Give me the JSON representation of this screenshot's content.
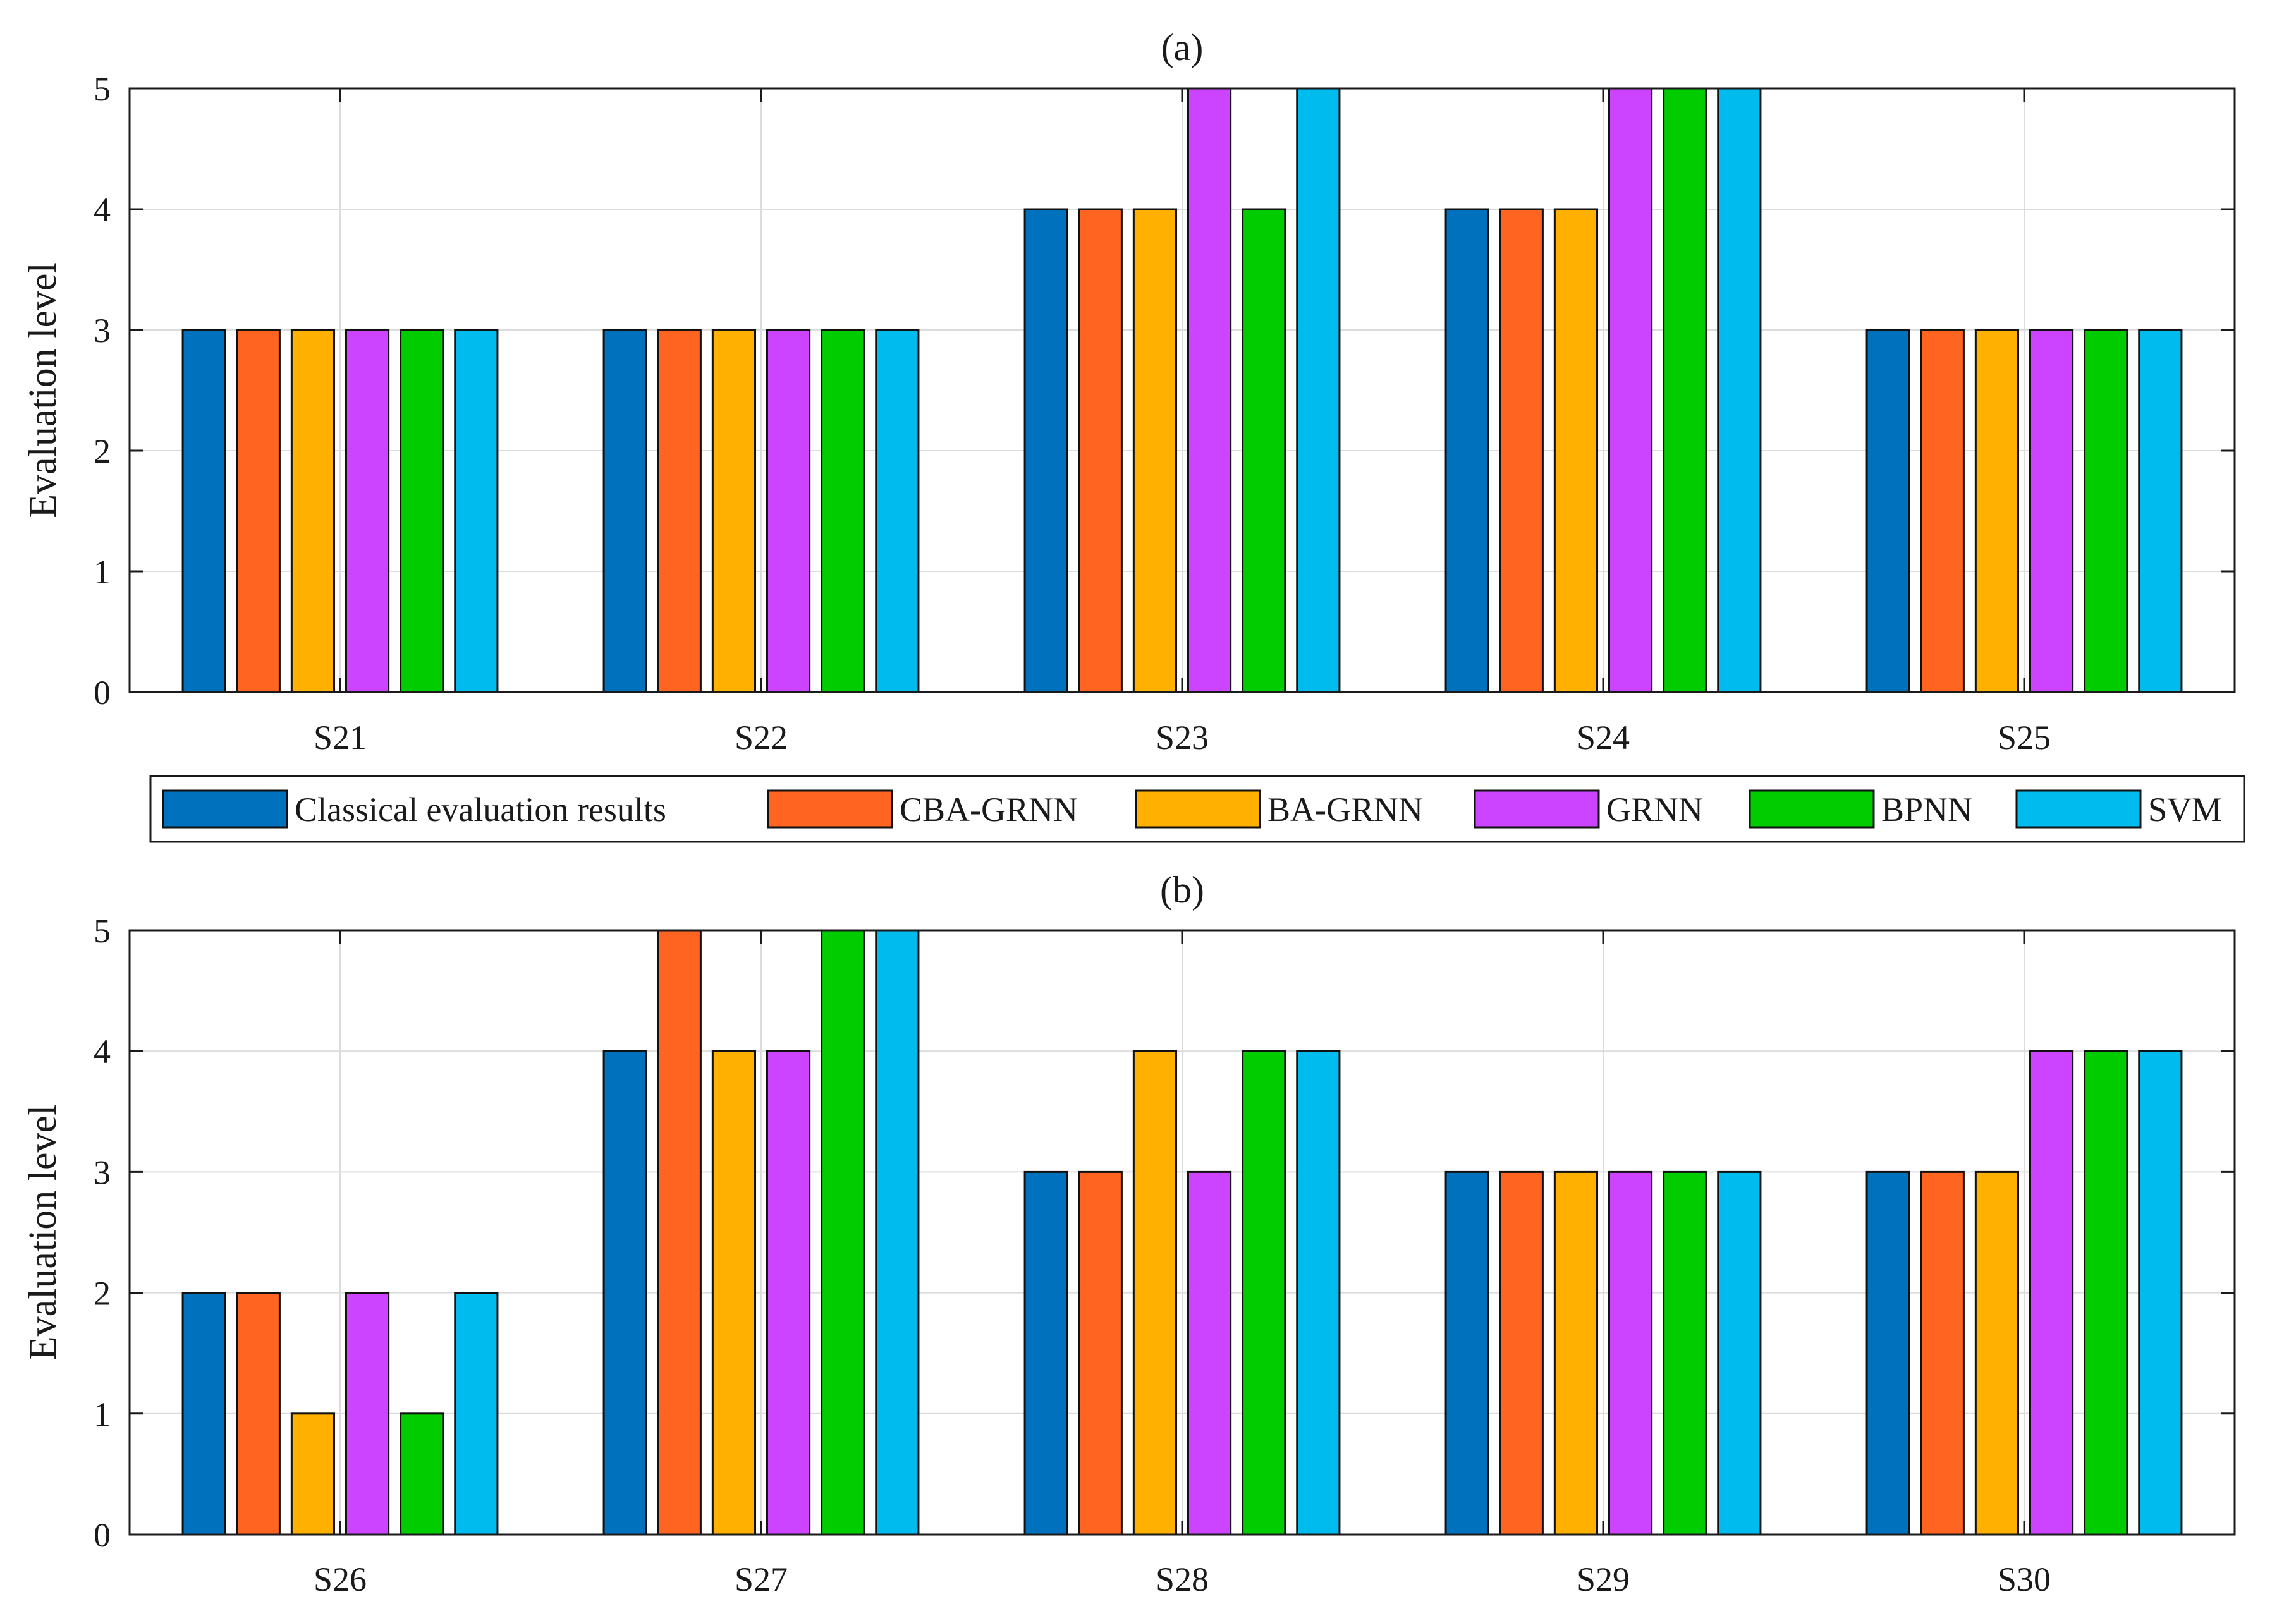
{
  "chart_data": [
    {
      "type": "bar",
      "title": "(a)",
      "xlabel": "",
      "ylabel": "Evaluation level",
      "ylim": [
        0,
        5
      ],
      "yticks": [
        "0",
        "1",
        "2",
        "3",
        "4",
        "5"
      ],
      "grid": true,
      "categories": [
        "S21",
        "S22",
        "S23",
        "S24",
        "S25"
      ],
      "series": [
        {
          "name": "Classical evaluation results",
          "values": [
            3,
            3,
            4,
            4,
            3
          ]
        },
        {
          "name": "CBA-GRNN",
          "values": [
            3,
            3,
            4,
            4,
            3
          ]
        },
        {
          "name": "BA-GRNN",
          "values": [
            3,
            3,
            4,
            4,
            3
          ]
        },
        {
          "name": "GRNN",
          "values": [
            3,
            3,
            5,
            5,
            3
          ]
        },
        {
          "name": "BPNN",
          "values": [
            3,
            3,
            4,
            5,
            3
          ]
        },
        {
          "name": "SVM",
          "values": [
            3,
            3,
            5,
            5,
            3
          ]
        }
      ]
    },
    {
      "type": "bar",
      "title": "(b)",
      "xlabel": "",
      "ylabel": "Evaluation level",
      "ylim": [
        0,
        5
      ],
      "yticks": [
        "0",
        "1",
        "2",
        "3",
        "4",
        "5"
      ],
      "grid": true,
      "categories": [
        "S26",
        "S27",
        "S28",
        "S29",
        "S30"
      ],
      "series": [
        {
          "name": "Classical evaluation results",
          "values": [
            2,
            4,
            3,
            3,
            3
          ]
        },
        {
          "name": "CBA-GRNN",
          "values": [
            2,
            5,
            3,
            3,
            3
          ]
        },
        {
          "name": "BA-GRNN",
          "values": [
            1,
            4,
            4,
            3,
            3
          ]
        },
        {
          "name": "GRNN",
          "values": [
            2,
            4,
            3,
            3,
            4
          ]
        },
        {
          "name": "BPNN",
          "values": [
            1,
            5,
            4,
            3,
            4
          ]
        },
        {
          "name": "SVM",
          "values": [
            2,
            5,
            4,
            3,
            4
          ]
        }
      ]
    }
  ],
  "legend": {
    "placement": "between-panels",
    "entries": [
      "Classical evaluation results",
      "CBA-GRNN",
      "BA-GRNN",
      "GRNN",
      "BPNN",
      "SVM"
    ]
  },
  "colors": {
    "series": [
      "#0072bd",
      "#ff6420",
      "#ffb000",
      "#cc44ff",
      "#00cc00",
      "#00bbee"
    ],
    "grid": "#dcdcdc",
    "axis": "#1a1a1a",
    "bar_edge": "#111111"
  }
}
